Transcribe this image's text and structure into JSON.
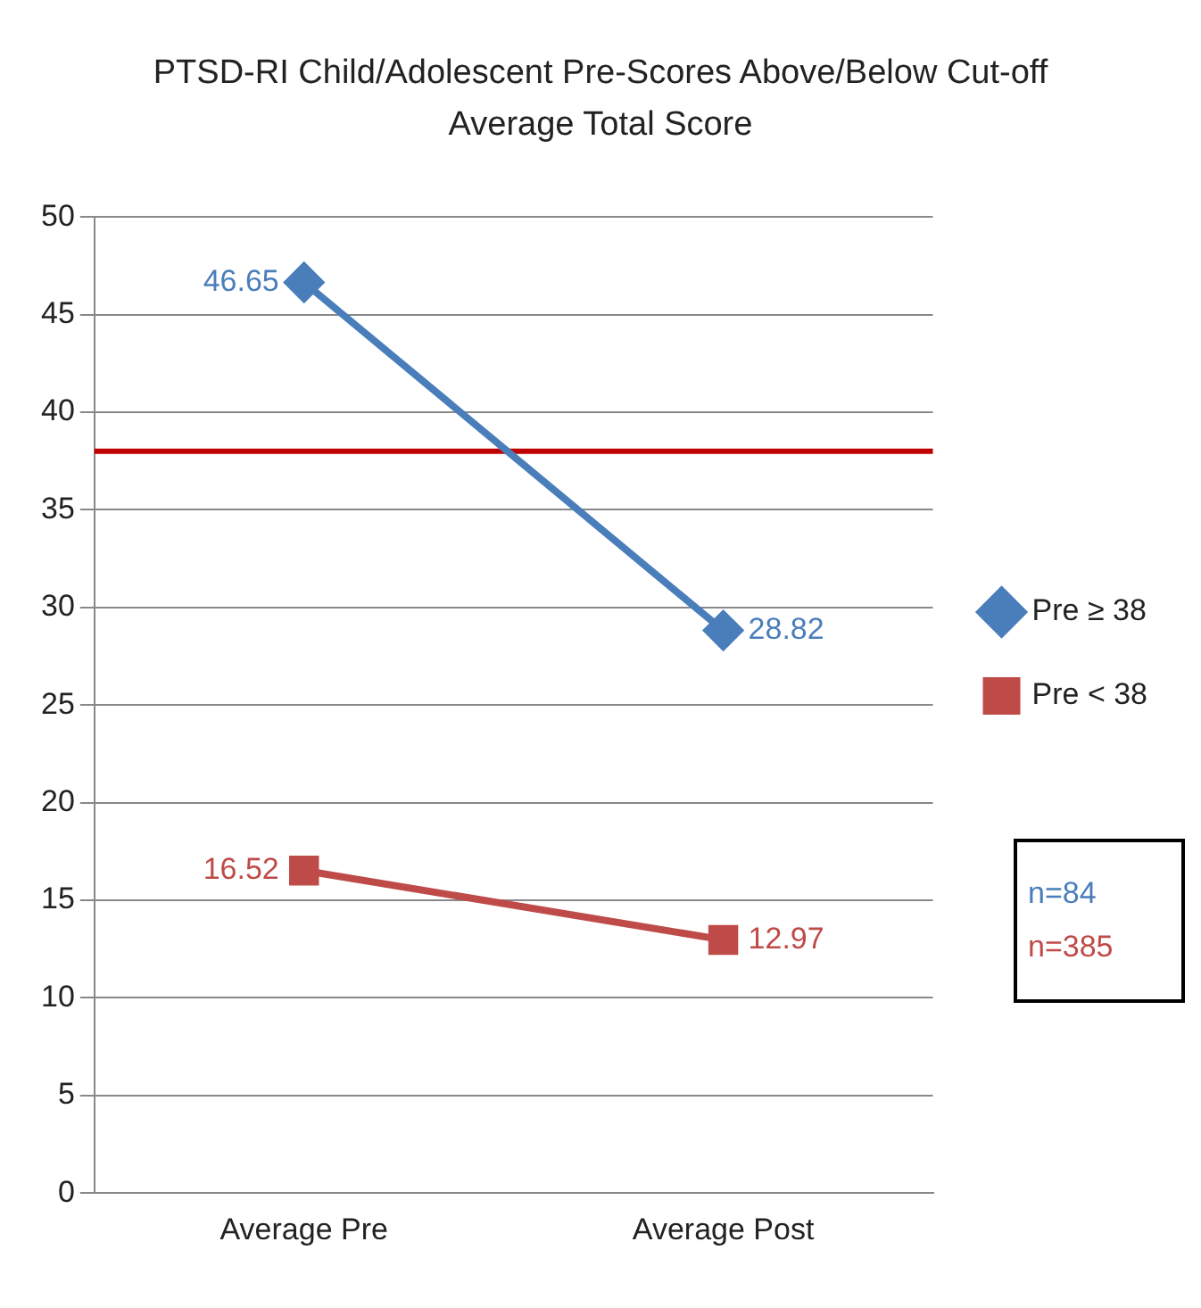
{
  "chart_data": {
    "type": "line",
    "title": "PTSD-RI Child/Adolescent Pre-Scores Above/Below Cut-off",
    "subtitle": "Average Total Score",
    "categories": [
      "Average Pre",
      "Average Post"
    ],
    "series": [
      {
        "name": "Pre ≥ 38",
        "color": "#4a7ebb",
        "values": [
          46.65,
          28.82
        ],
        "marker": "diamond"
      },
      {
        "name": "Pre < 38",
        "color": "#be4b48",
        "values": [
          16.52,
          12.97
        ],
        "marker": "square"
      }
    ],
    "ylim": [
      0,
      50
    ],
    "yticks": [
      0,
      5,
      10,
      15,
      20,
      25,
      30,
      35,
      40,
      45,
      50
    ],
    "grid": "y",
    "legend": "right",
    "data_labels": true,
    "ref_lines": [
      {
        "axis": "y",
        "value": 38,
        "color": "#c00000"
      }
    ],
    "annotations": [
      "n=84",
      "n=385"
    ]
  }
}
